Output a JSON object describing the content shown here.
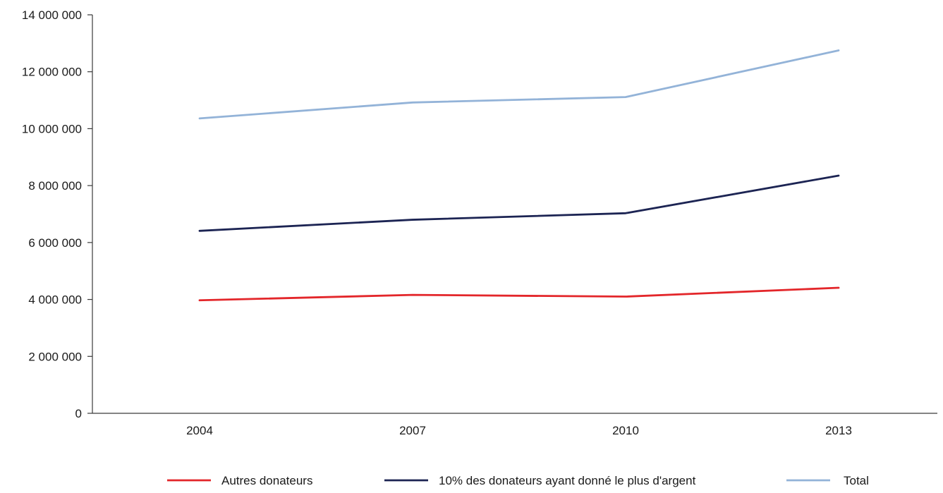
{
  "chart_data": {
    "type": "line",
    "title": "",
    "xlabel": "",
    "ylabel": "",
    "categories": [
      "2004",
      "2007",
      "2010",
      "2013"
    ],
    "ylim": [
      0,
      14000000
    ],
    "yticks": [
      0,
      2000000,
      4000000,
      6000000,
      8000000,
      10000000,
      12000000,
      14000000
    ],
    "ytick_labels": [
      "0",
      "2 000 000",
      "4 000 000",
      "6 000 000",
      "8 000 000",
      "10 000 000",
      "12 000 000",
      "14 000 000"
    ],
    "grid": false,
    "legend_position": "bottom",
    "series": [
      {
        "name": "Autres donateurs",
        "color": "#e3262a",
        "values": [
          3970000,
          4160000,
          4100000,
          4410000
        ]
      },
      {
        "name": "10% des donateurs ayant donné le plus d'argent",
        "color": "#1c2453",
        "values": [
          6410000,
          6800000,
          7030000,
          8350000
        ]
      },
      {
        "name": "Total",
        "color": "#93b3d8",
        "values": [
          10360000,
          10920000,
          11110000,
          12750000
        ]
      }
    ]
  }
}
